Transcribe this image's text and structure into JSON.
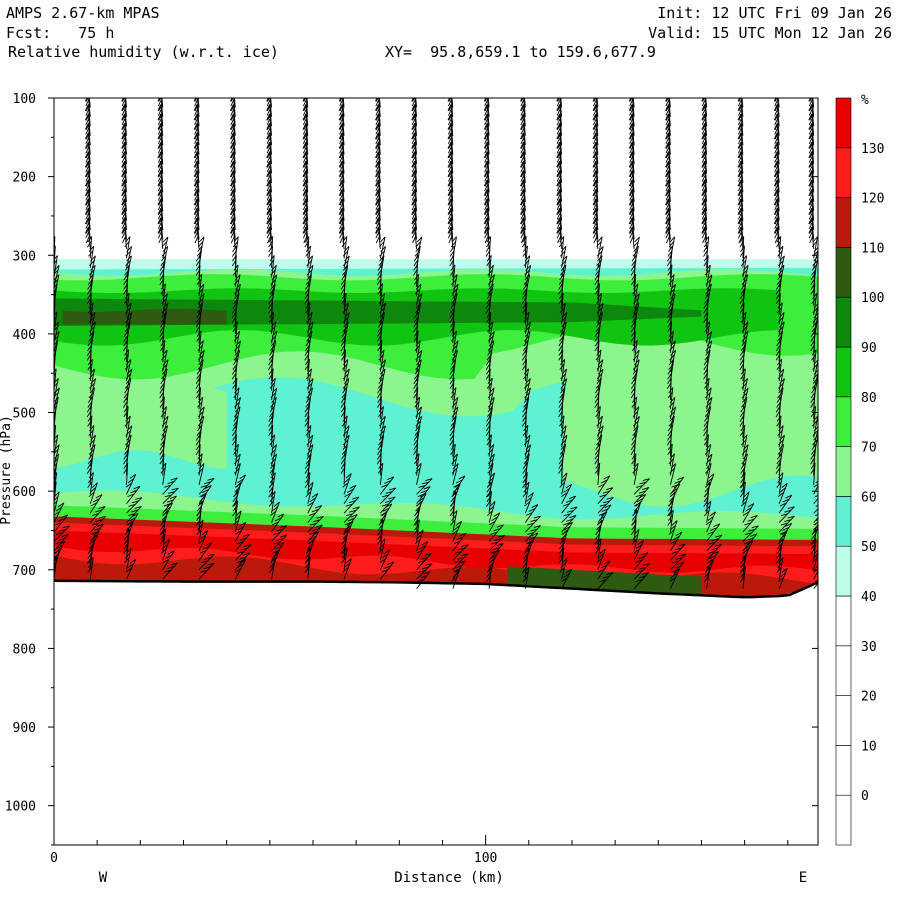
{
  "header": {
    "model": "AMPS 2.67-km MPAS",
    "forecast": "Fcst:   75 h",
    "field": "Relative humidity (w.r.t. ice)",
    "xy": "XY=  95.8,659.1 to 159.6,677.9",
    "init": "Init: 12 UTC Fri 09 Jan 26",
    "valid": "Valid: 15 UTC Mon 12 Jan 26"
  },
  "chart_data": {
    "type": "heatmap",
    "title": "Relative humidity (w.r.t. ice)",
    "xlabel": "Distance (km)",
    "ylabel": "Pressure (hPa)",
    "xlim": [
      0,
      177
    ],
    "ylim": [
      100,
      1050
    ],
    "x_ticks": [
      {
        "value": 0,
        "label": "0"
      },
      {
        "value": 100,
        "label": "100"
      }
    ],
    "y_ticks": [
      100,
      200,
      300,
      400,
      500,
      600,
      700,
      800,
      900,
      1000
    ],
    "x_end_labels": {
      "left": "W",
      "right": "E"
    },
    "colorbar": {
      "unit": "%",
      "levels": [
        0,
        10,
        20,
        30,
        40,
        50,
        60,
        70,
        80,
        90,
        100,
        110,
        120,
        130
      ],
      "colors": [
        "#ffffff",
        "#ffffff",
        "#ffffff",
        "#ffffff",
        "#bffbea",
        "#5ff2d2",
        "#8df58d",
        "#3dee3d",
        "#12c412",
        "#0d880d",
        "#2e5a12",
        "#bb1a0a",
        "#ff1c1c",
        "#e80000"
      ]
    },
    "terrain_surface": [
      {
        "x": 0,
        "p": 714
      },
      {
        "x": 30,
        "p": 715
      },
      {
        "x": 60,
        "p": 715
      },
      {
        "x": 80,
        "p": 716
      },
      {
        "x": 100,
        "p": 718
      },
      {
        "x": 120,
        "p": 724
      },
      {
        "x": 140,
        "p": 730
      },
      {
        "x": 160,
        "p": 735
      },
      {
        "x": 170,
        "p": 733
      },
      {
        "x": 177,
        "p": 716
      }
    ],
    "rh_layers": [
      {
        "name_level": "30",
        "top": [
          [
            0,
            305
          ],
          [
            177,
            305
          ]
        ],
        "bottom": [
          [
            0,
            320
          ],
          [
            177,
            318
          ]
        ]
      },
      {
        "name_level": "50",
        "top": [
          [
            0,
            318
          ],
          [
            177,
            316
          ]
        ],
        "bottom": [
          [
            0,
            632
          ],
          [
            60,
            642
          ],
          [
            120,
            655
          ],
          [
            177,
            660
          ]
        ]
      },
      {
        "name_level": "80-100",
        "top": [
          [
            0,
            355
          ],
          [
            120,
            360
          ],
          [
            150,
            370
          ]
        ],
        "bottom": [
          [
            0,
            390
          ],
          [
            120,
            385
          ],
          [
            150,
            378
          ]
        ]
      },
      {
        "name_level": "110-130",
        "top": [
          [
            0,
            632
          ],
          [
            60,
            645
          ],
          [
            120,
            660
          ],
          [
            177,
            662
          ]
        ],
        "bottom": [
          [
            0,
            714
          ],
          [
            60,
            715
          ],
          [
            120,
            724
          ],
          [
            177,
            716
          ]
        ]
      }
    ],
    "wind_barb_columns_x": [
      0,
      8.4,
      16.8,
      25.2,
      33.6,
      42,
      50.4,
      58.8,
      67.2,
      75.6,
      84,
      92.4,
      100.8,
      109.2,
      117.6,
      126,
      134.4,
      142.8,
      151.2,
      159.6,
      168,
      176
    ]
  }
}
